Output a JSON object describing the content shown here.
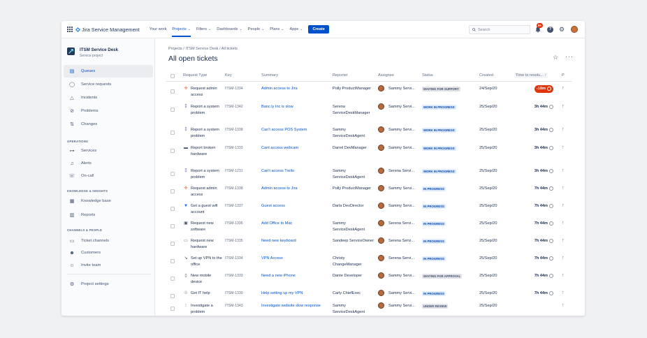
{
  "nav": {
    "product": "Jira Service Management",
    "items": [
      {
        "label": "Your work",
        "dropdown": false,
        "active": false
      },
      {
        "label": "Projects",
        "dropdown": true,
        "active": true
      },
      {
        "label": "Filters",
        "dropdown": true,
        "active": false
      },
      {
        "label": "Dashboards",
        "dropdown": true,
        "active": false
      },
      {
        "label": "People",
        "dropdown": true,
        "active": false
      },
      {
        "label": "Plans",
        "dropdown": true,
        "active": false
      },
      {
        "label": "Apps",
        "dropdown": true,
        "active": false
      }
    ],
    "create_label": "Create",
    "search_placeholder": "Search",
    "notification_badge": "9+",
    "help_glyph": "?"
  },
  "sidebar": {
    "project_name": "ITSM Service Desk",
    "project_type": "Service project",
    "items": [
      {
        "label": "Queues",
        "icon": "queues-icon",
        "active": true
      },
      {
        "label": "Service requests",
        "icon": "service-requests-icon",
        "active": false
      },
      {
        "label": "Incidents",
        "icon": "incidents-icon",
        "active": false
      },
      {
        "label": "Problems",
        "icon": "problems-icon",
        "active": false
      },
      {
        "label": "Changes",
        "icon": "changes-icon",
        "active": false
      }
    ],
    "sections": {
      "operations": {
        "title": "OPERATIONS",
        "items": [
          {
            "label": "Services",
            "icon": "services-icon"
          },
          {
            "label": "Alerts",
            "icon": "alerts-icon"
          },
          {
            "label": "On-call",
            "icon": "on-call-icon"
          }
        ]
      },
      "knowledge": {
        "title": "KNOWLEDGE & INSIGHTS",
        "items": [
          {
            "label": "Knowledge base",
            "icon": "knowledge-base-icon"
          },
          {
            "label": "Reports",
            "icon": "reports-icon"
          }
        ]
      },
      "channels": {
        "title": "CHANNELS & PEOPLE",
        "items": [
          {
            "label": "Ticket channels",
            "icon": "ticket-channels-icon"
          },
          {
            "label": "Customers",
            "icon": "customers-icon"
          },
          {
            "label": "Invite team",
            "icon": "invite-team-icon"
          }
        ]
      }
    },
    "settings_label": "Project settings"
  },
  "page": {
    "breadcrumb": "Projects  /  ITSM Service Desk  /  All tickets",
    "title": "All open tickets"
  },
  "table": {
    "headers": {
      "request_type": "Request Type",
      "key": "Key",
      "summary": "Summary",
      "reporter": "Reporter",
      "assignee": "Assignee",
      "status": "Status",
      "created": "Created",
      "time_to_resolution": "Time to resolu...  ↑",
      "priority": "P"
    },
    "rows": [
      {
        "type_icon": "request-access-icon",
        "type": "Request admin access",
        "key": "ITSM-1334",
        "summary": "Admin access to Jira",
        "reporter": "Polly ProductManager",
        "assignee": "Sammy Servi...",
        "status": "WAITING FOR SUPPORT",
        "status_color": "grey",
        "created": "24/Sep/20",
        "ttr": "-18m",
        "breach": true
      },
      {
        "type_icon": "report-problem-icon",
        "type": "Report a system problem",
        "key": "ITSM-1342",
        "summary": "Banc.ly Inc is slow",
        "reporter": "Serena ServiceDeskManager",
        "assignee": "Sammy Servi...",
        "status": "WORK IN PROGRESS",
        "status_color": "blue",
        "created": "25/Sep/20",
        "ttr": "3h 44m",
        "breach": false
      },
      {
        "type_icon": "report-problem-icon",
        "type": "Report a system problem",
        "key": "ITSM-1338",
        "summary": "Can't access POS System",
        "reporter": "Sammy ServiceDeskAgent",
        "assignee": "Sammy Servi...",
        "status": "WORK IN PROGRESS",
        "status_color": "blue",
        "created": "25/Sep/20",
        "ttr": "3h 44m",
        "breach": false
      },
      {
        "type_icon": "broken-hardware-icon",
        "type": "Report broken hardware",
        "key": "ITSM-1333",
        "summary": "Cant access webcam",
        "reporter": "Darrel DevManager",
        "assignee": "Sammy Servi...",
        "status": "WORK IN PROGRESS",
        "status_color": "blue",
        "created": "25/Sep/20",
        "ttr": "3h 44m",
        "breach": false
      },
      {
        "type_icon": "report-problem-icon",
        "type": "Report a system problem",
        "key": "ITSM-1231",
        "summary": "Can't access Trello",
        "reporter": "Sammy ServiceDeskAgent",
        "assignee": "Serena Servi...",
        "status": "WORK IN PROGRESS",
        "status_color": "blue",
        "created": "25/Sep/20",
        "ttr": "3h 44m",
        "breach": false
      },
      {
        "type_icon": "request-access-icon",
        "type": "Request admin access",
        "key": "ITSM-1338",
        "summary": "Admin access to Jira",
        "reporter": "Polly ProductManager",
        "assignee": "Sammy Servi...",
        "status": "IN PROGRESS",
        "status_color": "blue",
        "created": "25/Sep/20",
        "ttr": "7h 44m",
        "breach": false
      },
      {
        "type_icon": "guest-wifi-icon",
        "type": "Get a guest wifi account",
        "key": "ITSM-1337",
        "summary": "Guest access",
        "reporter": "Darla DevDirector",
        "assignee": "Sammy Servi...",
        "status": "IN PROGRESS",
        "status_color": "blue",
        "created": "25/Sep/20",
        "ttr": "7h 44m",
        "breach": false
      },
      {
        "type_icon": "new-software-icon",
        "type": "Request new software",
        "key": "ITSM-1336",
        "summary": "Add Office to Mac",
        "reporter": "Sammy ServiceDeskAgent",
        "assignee": "Serena Servi...",
        "status": "IN PROGRESS",
        "status_color": "blue",
        "created": "25/Sep/20",
        "ttr": "7h 44m",
        "breach": false
      },
      {
        "type_icon": "new-hardware-icon",
        "type": "Request new hardware",
        "key": "ITSM-1335",
        "summary": "Need new keyboard",
        "reporter": "Sandeep ServiceOwner",
        "assignee": "Serena Servi...",
        "status": "IN PROGRESS",
        "status_color": "blue",
        "created": "25/Sep/20",
        "ttr": "7h 44m",
        "breach": false
      },
      {
        "type_icon": "vpn-icon",
        "type": "Set up VPN to the office",
        "key": "ITSM-1334",
        "summary": "VPN Access",
        "reporter": "Christy ChangeManager",
        "assignee": "Serena Servi...",
        "status": "IN PROGRESS",
        "status_color": "blue",
        "created": "25/Sep/20",
        "ttr": "7h 44m",
        "breach": false
      },
      {
        "type_icon": "mobile-device-icon",
        "type": "New mobile device",
        "key": "ITSM-1333",
        "summary": "Need a new iPhone",
        "reporter": "Dante Developer",
        "assignee": "Sammy Servi...",
        "status": "WAITING FOR APPROVAL",
        "status_color": "grey",
        "created": "25/Sep/20",
        "ttr": "7h 44m",
        "breach": false
      },
      {
        "type_icon": "it-help-icon",
        "type": "Get IT help",
        "key": "ITSM-1330",
        "summary": "Help setting up my VPN",
        "reporter": "Carly ChiefExec",
        "assignee": "Sammy Servi...",
        "status": "IN PROGRESS",
        "status_color": "blue",
        "created": "25/Sep/20",
        "ttr": "7h 44m",
        "breach": false
      },
      {
        "type_icon": "investigate-problem-icon",
        "type": "Investigate a problem",
        "key": "ITSM-1343",
        "summary": "Investigate website slow response",
        "reporter": "Sammy ServiceDeskAgent",
        "assignee": "Sammy Servi...",
        "status": "UNDER REVIEW",
        "status_color": "grey",
        "created": "25/Sep/20",
        "ttr": "",
        "breach": false
      }
    ]
  },
  "colors": {
    "accent": "#0052cc",
    "breach": "#de350b",
    "priority": "#de350b",
    "status_grey_bg": "#dfe1e6",
    "status_blue_bg": "#deebff"
  }
}
